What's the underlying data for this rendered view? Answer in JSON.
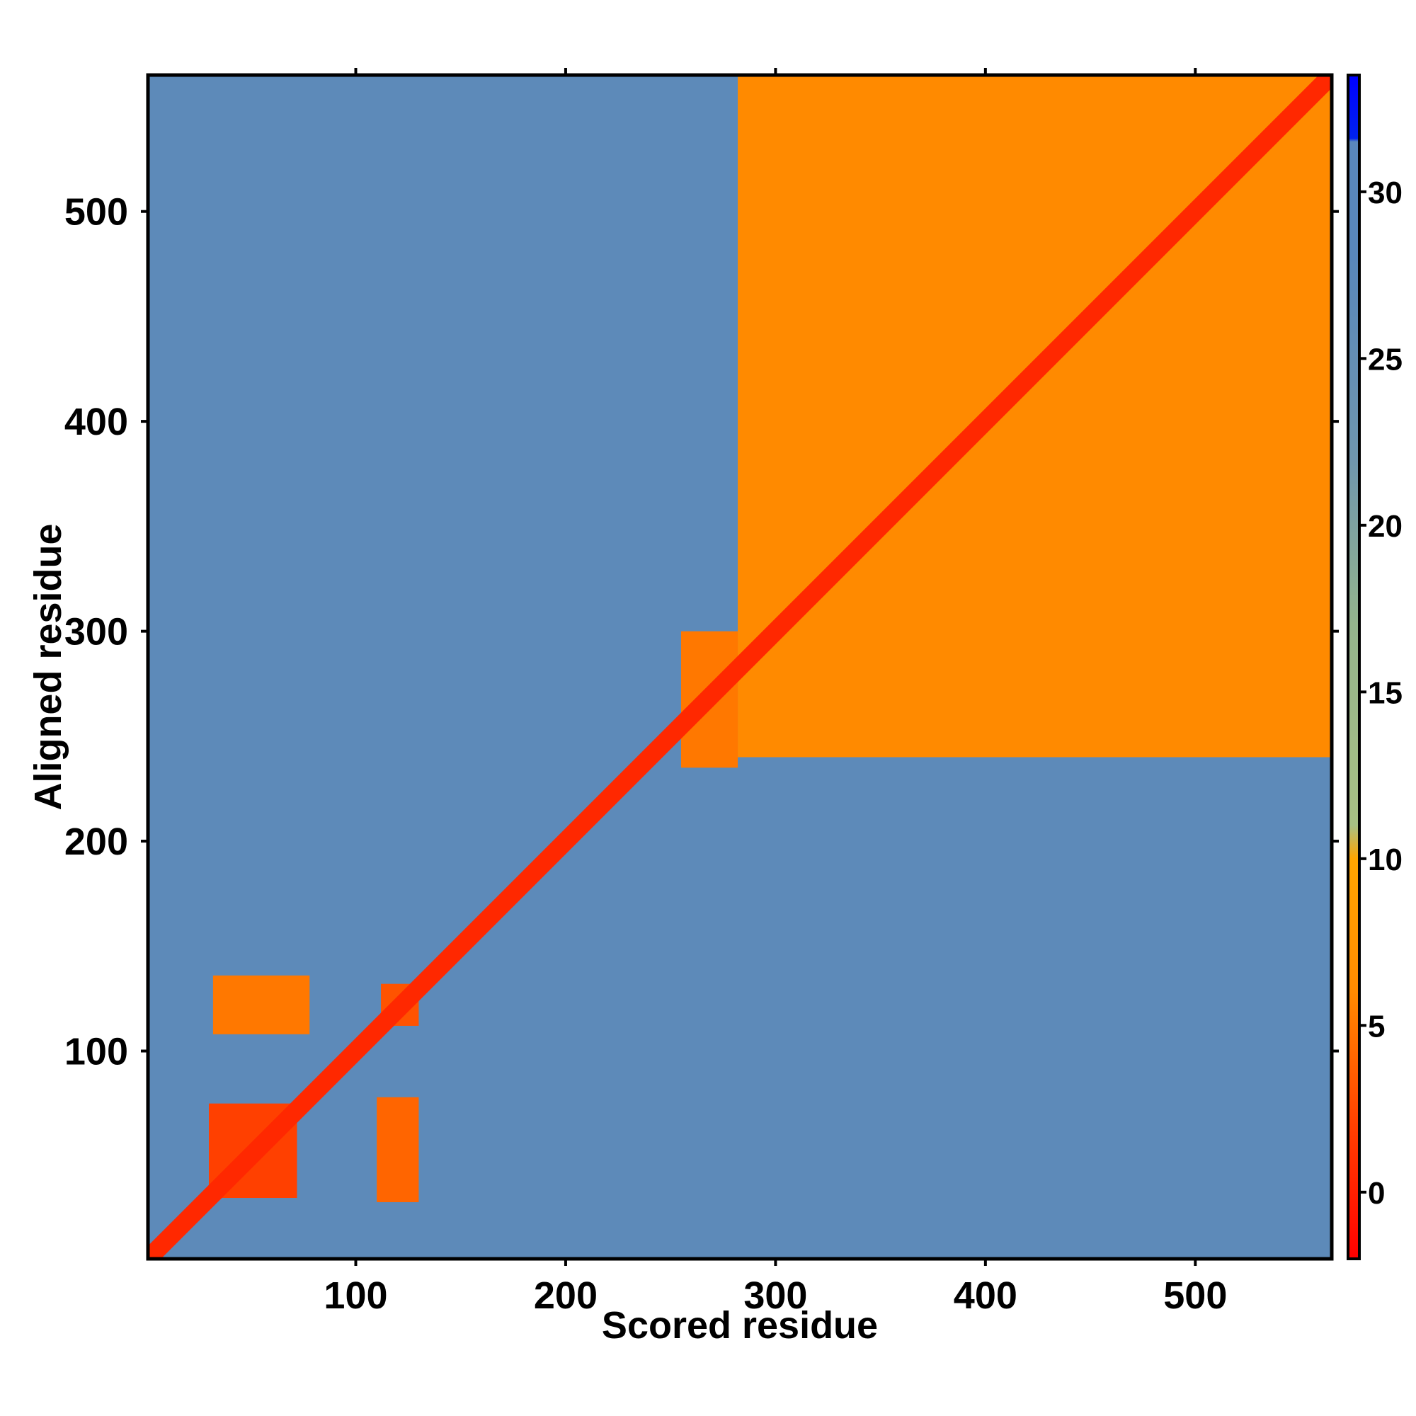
{
  "chart_data": {
    "type": "heatmap",
    "title": "",
    "xlabel": "Scored residue",
    "ylabel": "Aligned residue",
    "xlim": [
      1,
      565
    ],
    "ylim": [
      1,
      565
    ],
    "x_ticks": [
      100,
      200,
      300,
      400,
      500
    ],
    "y_ticks": [
      100,
      200,
      300,
      400,
      500
    ],
    "colorbar": {
      "range": [
        -2,
        33.5
      ],
      "ticks": [
        0,
        5,
        10,
        15,
        20,
        25,
        30
      ],
      "stops": [
        {
          "value": -2,
          "color": "#ff0000"
        },
        {
          "value": 2,
          "color": "#ff4000"
        },
        {
          "value": 6,
          "color": "#ff8a00"
        },
        {
          "value": 10,
          "color": "#ffa500"
        },
        {
          "value": 11,
          "color": "#a8c084"
        },
        {
          "value": 17,
          "color": "#94b48c"
        },
        {
          "value": 22,
          "color": "#6f96ae"
        },
        {
          "value": 28,
          "color": "#5987bb"
        },
        {
          "value": 31.5,
          "color": "#5987bb"
        },
        {
          "value": 31.6,
          "color": "#0022ee"
        },
        {
          "value": 33.5,
          "color": "#0000ff"
        }
      ]
    },
    "regions": [
      {
        "name": "background",
        "x_range": [
          1,
          565
        ],
        "y_range": [
          1,
          565
        ],
        "value": 27
      },
      {
        "name": "domain-c-block",
        "x_range": [
          282,
          565
        ],
        "y_range": [
          240,
          565
        ],
        "value": 6
      },
      {
        "name": "linker-band",
        "x_range": [
          255,
          282
        ],
        "y_range": [
          235,
          300
        ],
        "value": 5
      },
      {
        "name": "domain-a-block",
        "x_range": [
          30,
          72
        ],
        "y_range": [
          30,
          75
        ],
        "value": 2
      },
      {
        "name": "offdiag-block-1",
        "x_range": [
          32,
          78
        ],
        "y_range": [
          108,
          136
        ],
        "value": 5
      },
      {
        "name": "offdiag-block-2",
        "x_range": [
          110,
          130
        ],
        "y_range": [
          28,
          78
        ],
        "value": 4
      },
      {
        "name": "domain-b-block",
        "x_range": [
          112,
          130
        ],
        "y_range": [
          112,
          132
        ],
        "value": 3
      }
    ],
    "diagonal_value": 0.5
  }
}
